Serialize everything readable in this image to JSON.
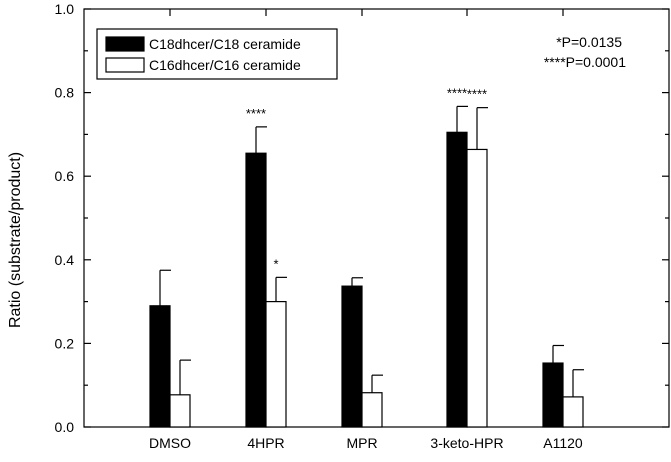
{
  "chart_data": {
    "type": "bar",
    "categories": [
      "DMSO",
      "4HPR",
      "MPR",
      "3-keto-HPR",
      "A1120"
    ],
    "series": [
      {
        "name": "C18dhcer/C18 ceramide",
        "color": "#000000",
        "values": [
          0.29,
          0.655,
          0.337,
          0.705,
          0.153
        ],
        "errors": [
          0.085,
          0.063,
          0.02,
          0.062,
          0.042
        ],
        "annotations": [
          "",
          "****",
          "",
          "****",
          ""
        ]
      },
      {
        "name": "C16dhcer/C16 ceramide",
        "color": "#ffffff",
        "values": [
          0.077,
          0.3,
          0.082,
          0.664,
          0.072
        ],
        "errors": [
          0.083,
          0.058,
          0.042,
          0.1,
          0.065
        ],
        "annotations": [
          "",
          "*",
          "",
          "****",
          ""
        ]
      }
    ],
    "title": "",
    "xlabel": "",
    "ylabel": "Ratio (substrate/product)",
    "ylim": [
      0,
      1.0
    ],
    "yticks": [
      "0.0",
      "0.2",
      "0.4",
      "0.6",
      "0.8",
      "1.0"
    ],
    "legend_position": "top-left",
    "grid": false,
    "stats_note": [
      "*P=0.0135",
      "****P=0.0001"
    ]
  }
}
